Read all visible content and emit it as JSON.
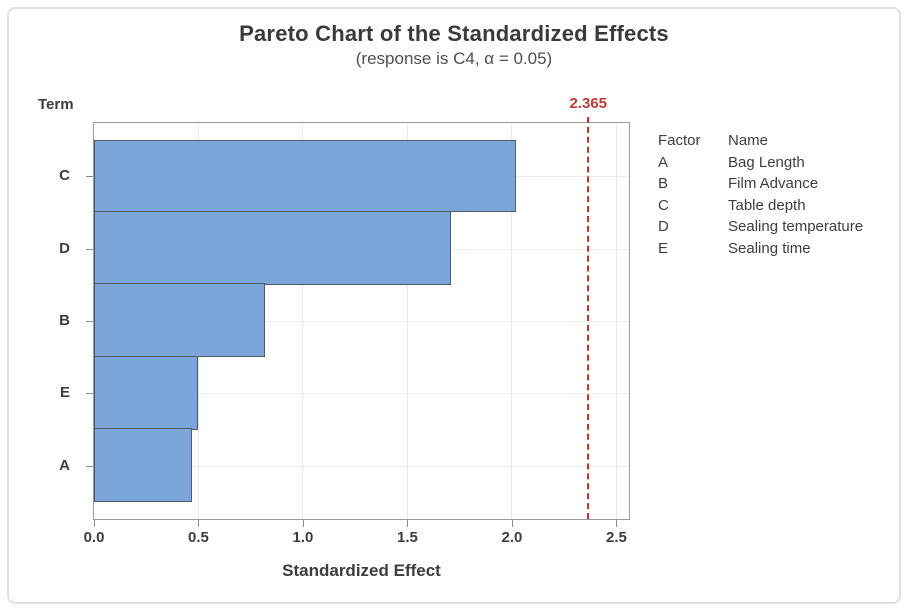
{
  "chart_data": {
    "type": "bar",
    "orientation": "horizontal",
    "title": "Pareto Chart of the Standardized Effects",
    "subtitle": "(response is C4, α = 0.05)",
    "xlabel": "Standardized Effect",
    "ylabel": "Term",
    "categories": [
      "C",
      "D",
      "B",
      "E",
      "A"
    ],
    "values": [
      2.02,
      1.71,
      0.82,
      0.5,
      0.47
    ],
    "xlim": [
      0,
      2.56
    ],
    "xticks": [
      0,
      0.5,
      1.0,
      1.5,
      2.0,
      2.5
    ],
    "xtick_labels": [
      "0.0",
      "0.5",
      "1.0",
      "1.5",
      "2.0",
      "2.5"
    ],
    "grid": true,
    "reference_line": {
      "value": 2.365,
      "label": "2.365"
    },
    "legend": {
      "position": "right",
      "headers": [
        "Factor",
        "Name"
      ],
      "rows": [
        [
          "A",
          "Bag Length"
        ],
        [
          "B",
          "Film Advance"
        ],
        [
          "C",
          "Table depth"
        ],
        [
          "D",
          "Sealing temperature"
        ],
        [
          "E",
          "Sealing time"
        ]
      ]
    },
    "colors": {
      "bar_fill": "#7ca5da",
      "bar_border": "#4e5a68",
      "reference_line": "#c9302f",
      "reference_label": "#be3b3b",
      "frame": "#9a9a9a",
      "gridline": "#e9e9e9",
      "text": "#3d3d3d",
      "subtitle_text": "#4f4f4f"
    }
  }
}
